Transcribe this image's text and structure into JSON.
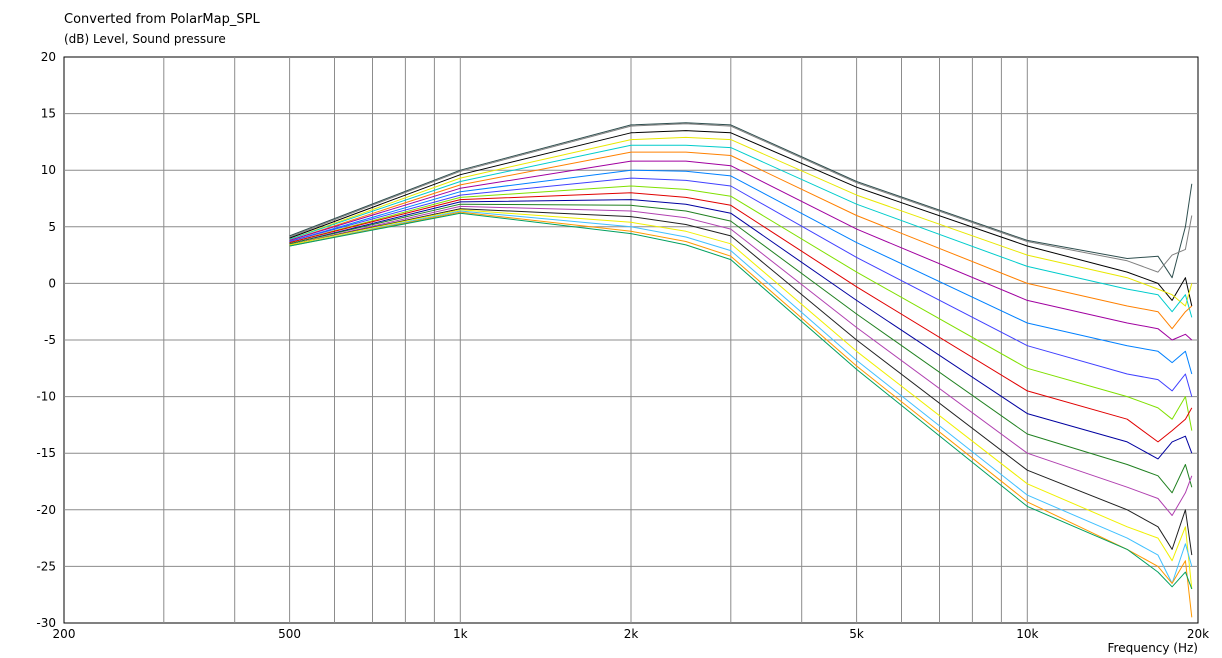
{
  "header": {
    "title": "Converted from PolarMap_SPL",
    "subtitle": "(dB)  Level, Sound pressure"
  },
  "chart_data": {
    "type": "line",
    "title": "Converted from PolarMap_SPL",
    "ylabel": "(dB)  Level, Sound pressure",
    "xlabel": "Frequency  (Hz)",
    "xscale": "log",
    "xlim": [
      200,
      20000
    ],
    "ylim": [
      -30,
      20
    ],
    "grid": true,
    "legend": "none",
    "x_ticks": [
      {
        "value": 200,
        "label": "200"
      },
      {
        "value": 500,
        "label": "500"
      },
      {
        "value": 1000,
        "label": "1k"
      },
      {
        "value": 2000,
        "label": "2k"
      },
      {
        "value": 5000,
        "label": "5k"
      },
      {
        "value": 10000,
        "label": "10k"
      },
      {
        "value": 20000,
        "label": "20k"
      }
    ],
    "y_ticks": [
      20,
      15,
      10,
      5,
      0,
      -5,
      -10,
      -15,
      -20,
      -25,
      -30
    ],
    "x": [
      500,
      1000,
      2000,
      2500,
      3000,
      5000,
      10000,
      15000,
      17000,
      18000,
      19000,
      19500
    ],
    "series": [
      {
        "color": "#2f4f4f",
        "values": [
          4.2,
          10.0,
          14.0,
          14.2,
          14.0,
          9.0,
          3.8,
          2.2,
          2.4,
          0.5,
          5.0,
          8.8
        ]
      },
      {
        "color": "#808080",
        "values": [
          4.1,
          9.9,
          13.9,
          14.1,
          13.9,
          8.9,
          3.7,
          2.0,
          1.0,
          2.5,
          3.0,
          6.0
        ]
      },
      {
        "color": "#000000",
        "values": [
          4.0,
          9.6,
          13.3,
          13.5,
          13.3,
          8.5,
          3.3,
          1.0,
          0.0,
          -1.5,
          0.5,
          -2.0
        ]
      },
      {
        "color": "#e8e800",
        "values": [
          3.9,
          9.3,
          12.7,
          12.9,
          12.7,
          7.8,
          2.5,
          0.5,
          -0.5,
          -1.0,
          -2.0,
          0.0
        ]
      },
      {
        "color": "#00cccc",
        "values": [
          3.9,
          9.0,
          12.2,
          12.2,
          12.0,
          7.0,
          1.5,
          -0.5,
          -1.0,
          -2.5,
          -1.0,
          -3.0
        ]
      },
      {
        "color": "#ff8000",
        "values": [
          3.8,
          8.7,
          11.6,
          11.6,
          11.3,
          6.0,
          0.0,
          -2.0,
          -2.5,
          -4.0,
          -2.5,
          -2.0
        ]
      },
      {
        "color": "#a000a0",
        "values": [
          3.8,
          8.4,
          10.8,
          10.8,
          10.4,
          4.8,
          -1.5,
          -3.5,
          -4.0,
          -5.0,
          -4.5,
          -5.0
        ]
      },
      {
        "color": "#0080ff",
        "values": [
          3.7,
          8.1,
          10.0,
          9.9,
          9.5,
          3.6,
          -3.5,
          -5.5,
          -6.0,
          -7.0,
          -6.0,
          -8.0
        ]
      },
      {
        "color": "#4040ff",
        "values": [
          3.7,
          7.8,
          9.3,
          9.1,
          8.6,
          2.3,
          -5.5,
          -8.0,
          -8.5,
          -9.5,
          -8.0,
          -10.0
        ]
      },
      {
        "color": "#80e000",
        "values": [
          3.6,
          7.6,
          8.6,
          8.3,
          7.7,
          1.0,
          -7.5,
          -10.0,
          -11.0,
          -12.0,
          -10.0,
          -13.0
        ]
      },
      {
        "color": "#e00000",
        "values": [
          3.6,
          7.4,
          8.0,
          7.6,
          6.9,
          -0.3,
          -9.5,
          -12.0,
          -14.0,
          -13.0,
          -12.0,
          -11.0
        ]
      },
      {
        "color": "#0000a0",
        "values": [
          3.5,
          7.2,
          7.4,
          7.0,
          6.2,
          -1.5,
          -11.5,
          -14.0,
          -15.5,
          -14.0,
          -13.5,
          -15.0
        ]
      },
      {
        "color": "#208020",
        "values": [
          3.5,
          7.0,
          6.9,
          6.4,
          5.5,
          -2.7,
          -13.3,
          -16.0,
          -17.0,
          -18.5,
          -16.0,
          -18.0
        ]
      },
      {
        "color": "#b040b0",
        "values": [
          3.4,
          6.8,
          6.4,
          5.8,
          4.8,
          -3.9,
          -15.0,
          -18.0,
          -19.0,
          -20.5,
          -18.5,
          -17.0
        ]
      },
      {
        "color": "#202020",
        "values": [
          3.4,
          6.6,
          5.9,
          5.2,
          4.2,
          -5.0,
          -16.5,
          -20.0,
          -21.5,
          -23.5,
          -20.0,
          -24.0
        ]
      },
      {
        "color": "#f0f000",
        "values": [
          3.4,
          6.5,
          5.4,
          4.6,
          3.5,
          -6.0,
          -17.7,
          -21.5,
          -22.5,
          -24.5,
          -21.5,
          -27.0
        ]
      },
      {
        "color": "#40c0ff",
        "values": [
          3.3,
          6.4,
          5.0,
          4.1,
          2.9,
          -6.8,
          -18.7,
          -22.5,
          -24.0,
          -26.5,
          -23.0,
          -25.0
        ]
      },
      {
        "color": "#ff9900",
        "values": [
          3.3,
          6.3,
          4.6,
          3.7,
          2.4,
          -7.3,
          -19.3,
          -23.5,
          -25.0,
          -26.5,
          -24.5,
          -29.5
        ]
      },
      {
        "color": "#00a060",
        "values": [
          3.3,
          6.2,
          4.4,
          3.4,
          2.1,
          -7.6,
          -19.7,
          -23.5,
          -25.5,
          -26.8,
          -25.5,
          -27.0
        ]
      }
    ]
  }
}
